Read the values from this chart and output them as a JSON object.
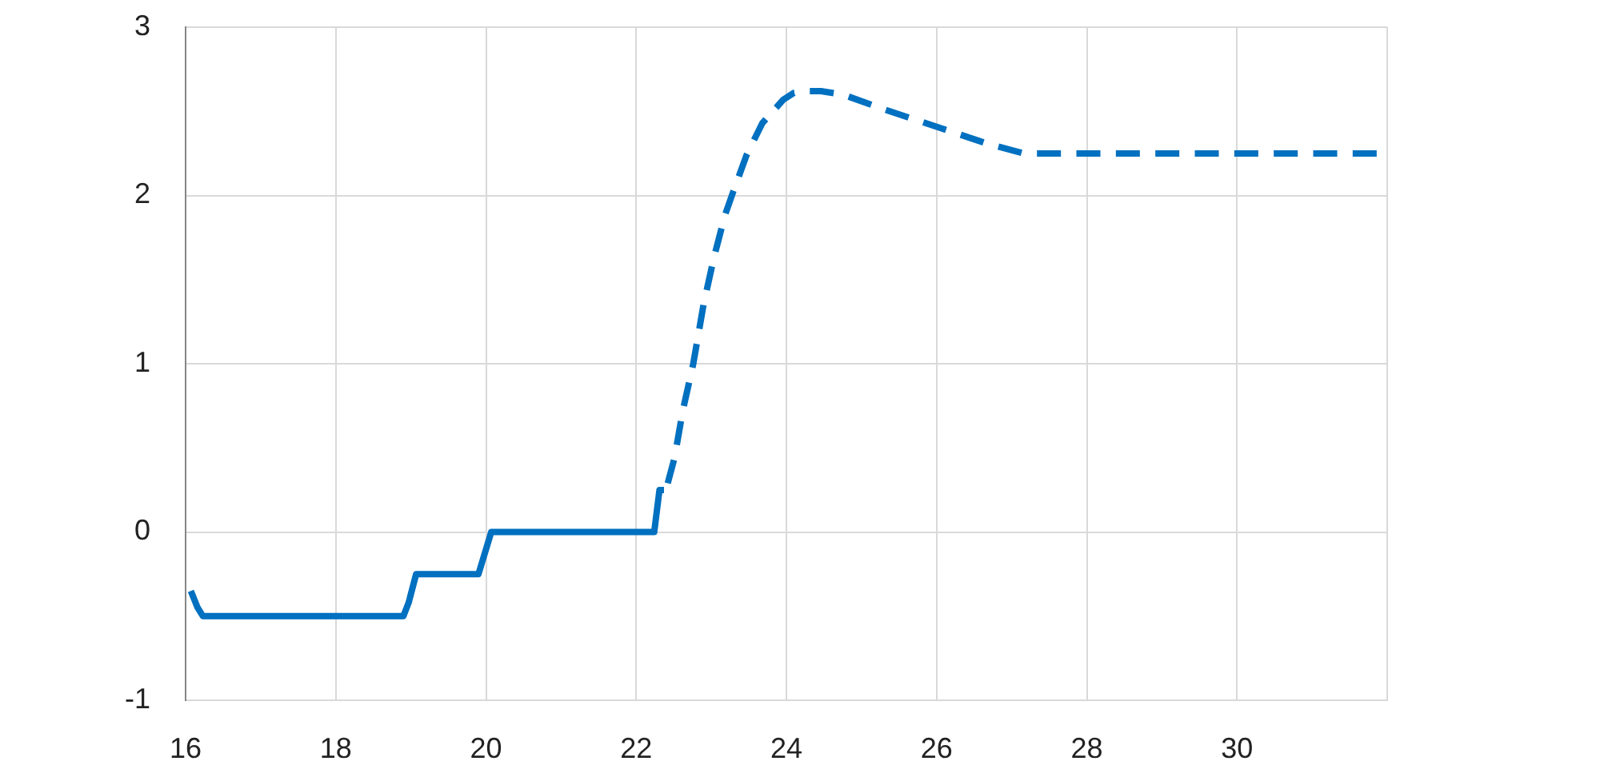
{
  "chart_data": {
    "type": "line",
    "xlim": [
      16,
      32
    ],
    "xticks": [
      16,
      18,
      20,
      22,
      24,
      26,
      28,
      30,
      {
        "value": 32,
        "label": null
      }
    ],
    "ylim": [
      -1,
      3
    ],
    "yticks": [
      -1,
      0,
      1,
      2,
      3
    ],
    "grid": true,
    "marker": "none",
    "series": [
      {
        "color": "#0070c0",
        "line_style": "solid",
        "x": [
          16.07,
          16.16,
          16.23,
          18.9,
          18.97,
          19.07,
          19.9,
          20.07,
          22.24,
          22.31,
          22.37
        ],
        "values": [
          -0.35,
          -0.45,
          -0.5,
          -0.5,
          -0.42,
          -0.25,
          -0.25,
          0,
          0,
          0.25,
          0.25
        ]
      },
      {
        "color": "#0070c0",
        "line_style": "dashed",
        "x": [
          22.42,
          22.51,
          22.62,
          22.76,
          22.9,
          23.04,
          23.18,
          23.29,
          23.47,
          23.68,
          23.96,
          24.1,
          24.25,
          24.46,
          24.75,
          25.31,
          25.99,
          26.66,
          27.16,
          31.86
        ],
        "values": [
          0.29,
          0.44,
          0.72,
          1.0,
          1.36,
          1.64,
          1.88,
          2.02,
          2.24,
          2.43,
          2.57,
          2.61,
          2.62,
          2.62,
          2.6,
          2.51,
          2.41,
          2.31,
          2.25,
          2.25
        ]
      }
    ]
  }
}
